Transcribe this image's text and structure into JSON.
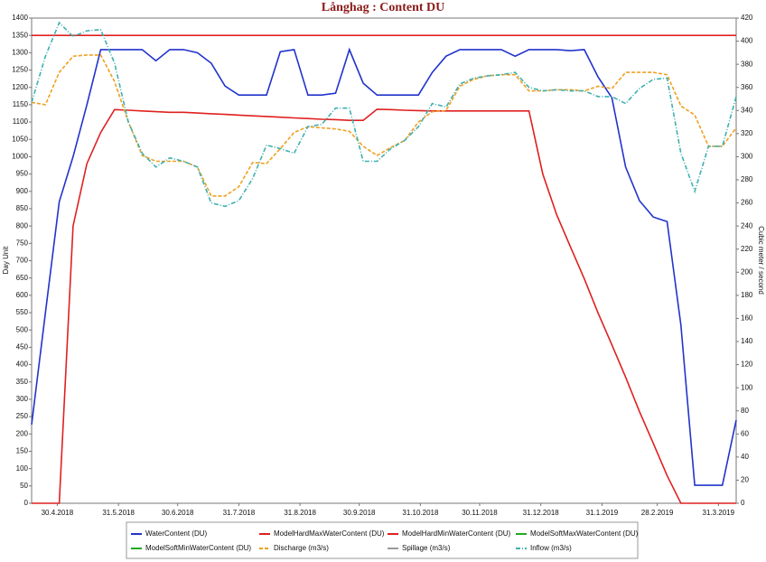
{
  "chart_data": {
    "type": "line",
    "title": "Långhag : Content DU",
    "y_label": "Day Unit",
    "y2_label": "Cubic meter / second",
    "grid": false,
    "x": [
      "2018-04-17",
      "2018-04-24",
      "2018-05-01",
      "2018-05-08",
      "2018-05-15",
      "2018-05-22",
      "2018-05-29",
      "2018-06-05",
      "2018-06-12",
      "2018-06-19",
      "2018-06-26",
      "2018-07-03",
      "2018-07-10",
      "2018-07-17",
      "2018-07-24",
      "2018-07-31",
      "2018-08-07",
      "2018-08-14",
      "2018-08-21",
      "2018-08-28",
      "2018-09-04",
      "2018-09-11",
      "2018-09-18",
      "2018-09-25",
      "2018-10-02",
      "2018-10-09",
      "2018-10-16",
      "2018-10-23",
      "2018-10-30",
      "2018-11-06",
      "2018-11-13",
      "2018-11-20",
      "2018-11-27",
      "2018-12-04",
      "2018-12-11",
      "2018-12-18",
      "2018-12-25",
      "2019-01-01",
      "2019-01-08",
      "2019-01-15",
      "2019-01-22",
      "2019-01-29",
      "2019-02-05",
      "2019-02-12",
      "2019-02-19",
      "2019-02-26",
      "2019-03-05",
      "2019-03-12",
      "2019-03-19",
      "2019-03-26",
      "2019-04-02",
      "2019-04-09"
    ],
    "xlim": [
      "2018-04-17",
      "2019-04-09"
    ],
    "xticks": [
      {
        "value": "2018-04-30",
        "label": "30.4.2018"
      },
      {
        "value": "2018-05-31",
        "label": "31.5.2018"
      },
      {
        "value": "2018-06-30",
        "label": "30.6.2018"
      },
      {
        "value": "2018-07-31",
        "label": "31.7.2018"
      },
      {
        "value": "2018-08-31",
        "label": "31.8.2018"
      },
      {
        "value": "2018-09-30",
        "label": "30.9.2018"
      },
      {
        "value": "2018-10-31",
        "label": "31.10.2018"
      },
      {
        "value": "2018-11-30",
        "label": "30.11.2018"
      },
      {
        "value": "2018-12-31",
        "label": "31.12.2018"
      },
      {
        "value": "2019-01-31",
        "label": "31.1.2019"
      },
      {
        "value": "2019-02-28",
        "label": "28.2.2019"
      },
      {
        "value": "2019-03-31",
        "label": "31.3.2019"
      }
    ],
    "ylim": [
      0,
      1400
    ],
    "yticks": [
      0,
      50,
      100,
      150,
      200,
      250,
      300,
      350,
      400,
      450,
      500,
      550,
      600,
      650,
      700,
      750,
      800,
      850,
      900,
      950,
      1000,
      1050,
      1100,
      1150,
      1200,
      1250,
      1300,
      1350,
      1400
    ],
    "y2lim": [
      0,
      420
    ],
    "y2ticks": [
      0,
      20,
      40,
      60,
      80,
      100,
      120,
      140,
      160,
      180,
      200,
      220,
      240,
      260,
      280,
      300,
      320,
      340,
      360,
      380,
      400,
      420
    ],
    "series": [
      {
        "name": "WaterContent (DU)",
        "color": "#2233cc",
        "style": "solid",
        "values": [
          227,
          550,
          870,
          1000,
          1150,
          1309,
          1309,
          1309,
          1309,
          1277,
          1309,
          1309,
          1300,
          1270,
          1204,
          1178,
          1178,
          1178,
          1303,
          1309,
          1178,
          1178,
          1183,
          1309,
          1212,
          1178,
          1178,
          1178,
          1178,
          1243,
          1290,
          1309,
          1309,
          1309,
          1309,
          1290,
          1309,
          1309,
          1309,
          1306,
          1309,
          1230,
          1170,
          970,
          873,
          826,
          813,
          514,
          52,
          52,
          52,
          240
        ]
      },
      {
        "name": "ModelHardMaxWaterContent (DU)",
        "color": "#e02020",
        "style": "solid",
        "values": [
          1350,
          1350,
          1350,
          1350,
          1350,
          1350,
          1350,
          1350,
          1350,
          1350,
          1350,
          1350,
          1350,
          1350,
          1350,
          1350,
          1350,
          1350,
          1350,
          1350,
          1350,
          1350,
          1350,
          1350,
          1350,
          1350,
          1350,
          1350,
          1350,
          1350,
          1350,
          1350,
          1350,
          1350,
          1350,
          1350,
          1350,
          1350,
          1350,
          1350,
          1350,
          1350,
          1350,
          1350,
          1350,
          1350,
          1350,
          1350,
          1350,
          1350,
          1350,
          1350
        ]
      },
      {
        "name": "ModelHardMinWaterContent (DU)",
        "color": "#e02020",
        "style": "solid",
        "values": [
          0,
          0,
          0,
          800,
          980,
          1070,
          1136,
          1134,
          1132,
          1130,
          1128,
          1128,
          1126,
          1124,
          1122,
          1120,
          1118,
          1116,
          1114,
          1112,
          1110,
          1108,
          1107,
          1105,
          1105,
          1137,
          1136,
          1134,
          1133,
          1132,
          1132,
          1132,
          1132,
          1132,
          1132,
          1132,
          1132,
          950,
          833,
          740,
          648,
          549,
          457,
          364,
          265,
          173,
          80,
          0,
          0,
          0,
          0,
          0
        ]
      },
      {
        "name": "ModelSoftMaxWaterContent (DU)",
        "color": "#22aa22",
        "style": "solid",
        "values": [
          null,
          null,
          null,
          null,
          null,
          null,
          null,
          null,
          null,
          null,
          null,
          null,
          null,
          null,
          null,
          null,
          null,
          null,
          null,
          null,
          null,
          null,
          null,
          null,
          null,
          null,
          null,
          null,
          null,
          null,
          null,
          null,
          null,
          null,
          null,
          null,
          null,
          null,
          null,
          null,
          null,
          null,
          null,
          null,
          null,
          null,
          null,
          null,
          null,
          null,
          null,
          null
        ]
      },
      {
        "name": "ModelSoftMinWaterContent (DU)",
        "color": "#22aa22",
        "style": "solid",
        "values": [
          null,
          null,
          null,
          null,
          null,
          null,
          null,
          null,
          null,
          null,
          null,
          null,
          null,
          null,
          null,
          null,
          null,
          null,
          null,
          null,
          null,
          null,
          null,
          null,
          null,
          null,
          null,
          null,
          null,
          null,
          null,
          null,
          null,
          null,
          null,
          null,
          null,
          null,
          null,
          null,
          null,
          null,
          null,
          null,
          null,
          null,
          null,
          null,
          null,
          null,
          null,
          null
        ]
      },
      {
        "name": "Discharge (m3/s)",
        "color": "#f0a020",
        "style": "dashed",
        "axis": "y2",
        "values": [
          347,
          345,
          373,
          387,
          388,
          388,
          365,
          330,
          301,
          296,
          296,
          296,
          291,
          266,
          266,
          274,
          295,
          294,
          307,
          321,
          326,
          325,
          324,
          322,
          309,
          301,
          308,
          314,
          330,
          339,
          340,
          361,
          367,
          370,
          371,
          371,
          357,
          357,
          358,
          358,
          357,
          361,
          359,
          373,
          373,
          373,
          371,
          344,
          336,
          309,
          309,
          325
        ]
      },
      {
        "name": "Spillage (m3/s)",
        "color": "#999999",
        "style": "solid",
        "axis": "y2",
        "values": [
          null,
          null,
          null,
          null,
          null,
          null,
          null,
          null,
          null,
          null,
          null,
          null,
          null,
          null,
          null,
          null,
          null,
          null,
          null,
          null,
          null,
          null,
          null,
          null,
          null,
          null,
          null,
          null,
          null,
          null,
          null,
          null,
          null,
          null,
          null,
          null,
          null,
          null,
          null,
          null,
          null,
          null,
          null,
          null,
          null,
          null,
          null,
          null,
          null,
          null,
          null,
          null
        ]
      },
      {
        "name": "Inflow (m3/s)",
        "color": "#40b0b0",
        "style": "dashdot",
        "axis": "y2",
        "values": [
          347,
          387,
          416,
          404,
          409,
          410,
          381,
          330,
          303,
          291,
          299,
          296,
          291,
          260,
          257,
          262,
          281,
          310,
          307,
          303,
          326,
          328,
          342,
          342,
          296,
          296,
          307,
          314,
          326,
          346,
          343,
          363,
          368,
          370,
          371,
          373,
          360,
          357,
          358,
          357,
          357,
          352,
          352,
          346,
          359,
          367,
          368,
          303,
          270,
          309,
          309,
          352
        ]
      }
    ]
  }
}
